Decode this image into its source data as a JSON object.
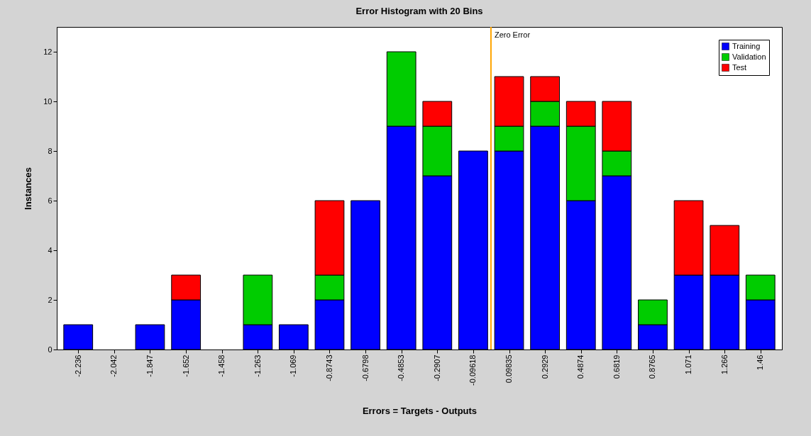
{
  "chart_data": {
    "type": "bar",
    "stacked": true,
    "title": "Error Histogram with 20 Bins",
    "xlabel": "Errors = Targets - Outputs",
    "ylabel": "Instances",
    "x": [
      -2.236,
      -2.042,
      -1.847,
      -1.652,
      -1.458,
      -1.263,
      -1.069,
      -0.8743,
      -0.6798,
      -0.4853,
      -0.2907,
      -0.09618,
      0.09835,
      0.2929,
      0.4874,
      0.6819,
      0.8765,
      1.071,
      1.266,
      1.46
    ],
    "series": [
      {
        "name": "Training",
        "color": "#0000ff",
        "values": [
          1,
          0,
          1,
          2,
          0,
          1,
          1,
          2,
          6,
          9,
          7,
          8,
          8,
          9,
          6,
          7,
          1,
          3,
          3,
          2
        ]
      },
      {
        "name": "Validation",
        "color": "#00cc00",
        "values": [
          0,
          0,
          0,
          0,
          0,
          2,
          0,
          1,
          0,
          3,
          2,
          0,
          1,
          1,
          3,
          1,
          1,
          0,
          0,
          1
        ]
      },
      {
        "name": "Test",
        "color": "#ff0000",
        "values": [
          0,
          0,
          0,
          1,
          0,
          0,
          0,
          3,
          0,
          0,
          1,
          0,
          2,
          1,
          1,
          2,
          0,
          3,
          2,
          0
        ]
      }
    ],
    "xlim": [
      -2.333,
      1.557
    ],
    "xticks": [
      -2.236,
      -2.042,
      -1.847,
      -1.652,
      -1.458,
      -1.263,
      -1.069,
      -0.8743,
      -0.6798,
      -0.4853,
      -0.2907,
      -0.09618,
      0.09835,
      0.2929,
      0.4874,
      0.6819,
      0.8765,
      1.071,
      1.266,
      1.46
    ],
    "ylim": [
      0,
      13
    ],
    "yticks": [
      0,
      2,
      4,
      6,
      8,
      10,
      12
    ],
    "ref_lines": [
      {
        "axis": "x",
        "value": 0,
        "label": "Zero Error",
        "color": "#ffa500"
      }
    ],
    "legend": "top right",
    "grid": false
  }
}
